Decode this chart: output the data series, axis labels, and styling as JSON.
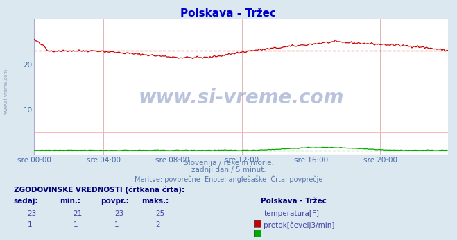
{
  "title": "Polskava - Tržec",
  "title_color": "#0000cc",
  "bg_color": "#dce8f0",
  "plot_bg_color": "#ffffff",
  "xlabel_times": [
    "sre 00:00",
    "sre 04:00",
    "sre 08:00",
    "sre 12:00",
    "sre 16:00",
    "sre 20:00"
  ],
  "ylabel_temp": [
    10,
    20
  ],
  "ylim": [
    0,
    30
  ],
  "xlim": [
    0,
    287
  ],
  "grid_color_h": "#ffaaaa",
  "grid_color_v": "#ddaaaa",
  "temp_color": "#cc0000",
  "flow_color": "#00aa00",
  "watermark_text": "www.si-vreme.com",
  "watermark_color": "#1a3a8a",
  "watermark_alpha": 0.3,
  "subtitle1": "Slovenija / reke in morje.",
  "subtitle2": "zadnji dan / 5 minut.",
  "subtitle3": "Meritve: povprečne  Enote: anglešaške  Črta: povprečje",
  "subtitle_color": "#5577aa",
  "legend_title": "Polskava - Tržec",
  "hist_label": "ZGODOVINSKE VREDNOSTI (črtkana črta):",
  "col_headers": [
    "sedaj:",
    "min.:",
    "povpr.:",
    "maks.:"
  ],
  "temp_row": [
    "23",
    "21",
    "23",
    "25",
    "temperatura[F]"
  ],
  "flow_row": [
    "1",
    "1",
    "1",
    "2",
    "pretok[čevelj3/min]"
  ],
  "temp_avg": 23,
  "flow_avg": 1,
  "side_watermark": "www.si-vreme.com"
}
